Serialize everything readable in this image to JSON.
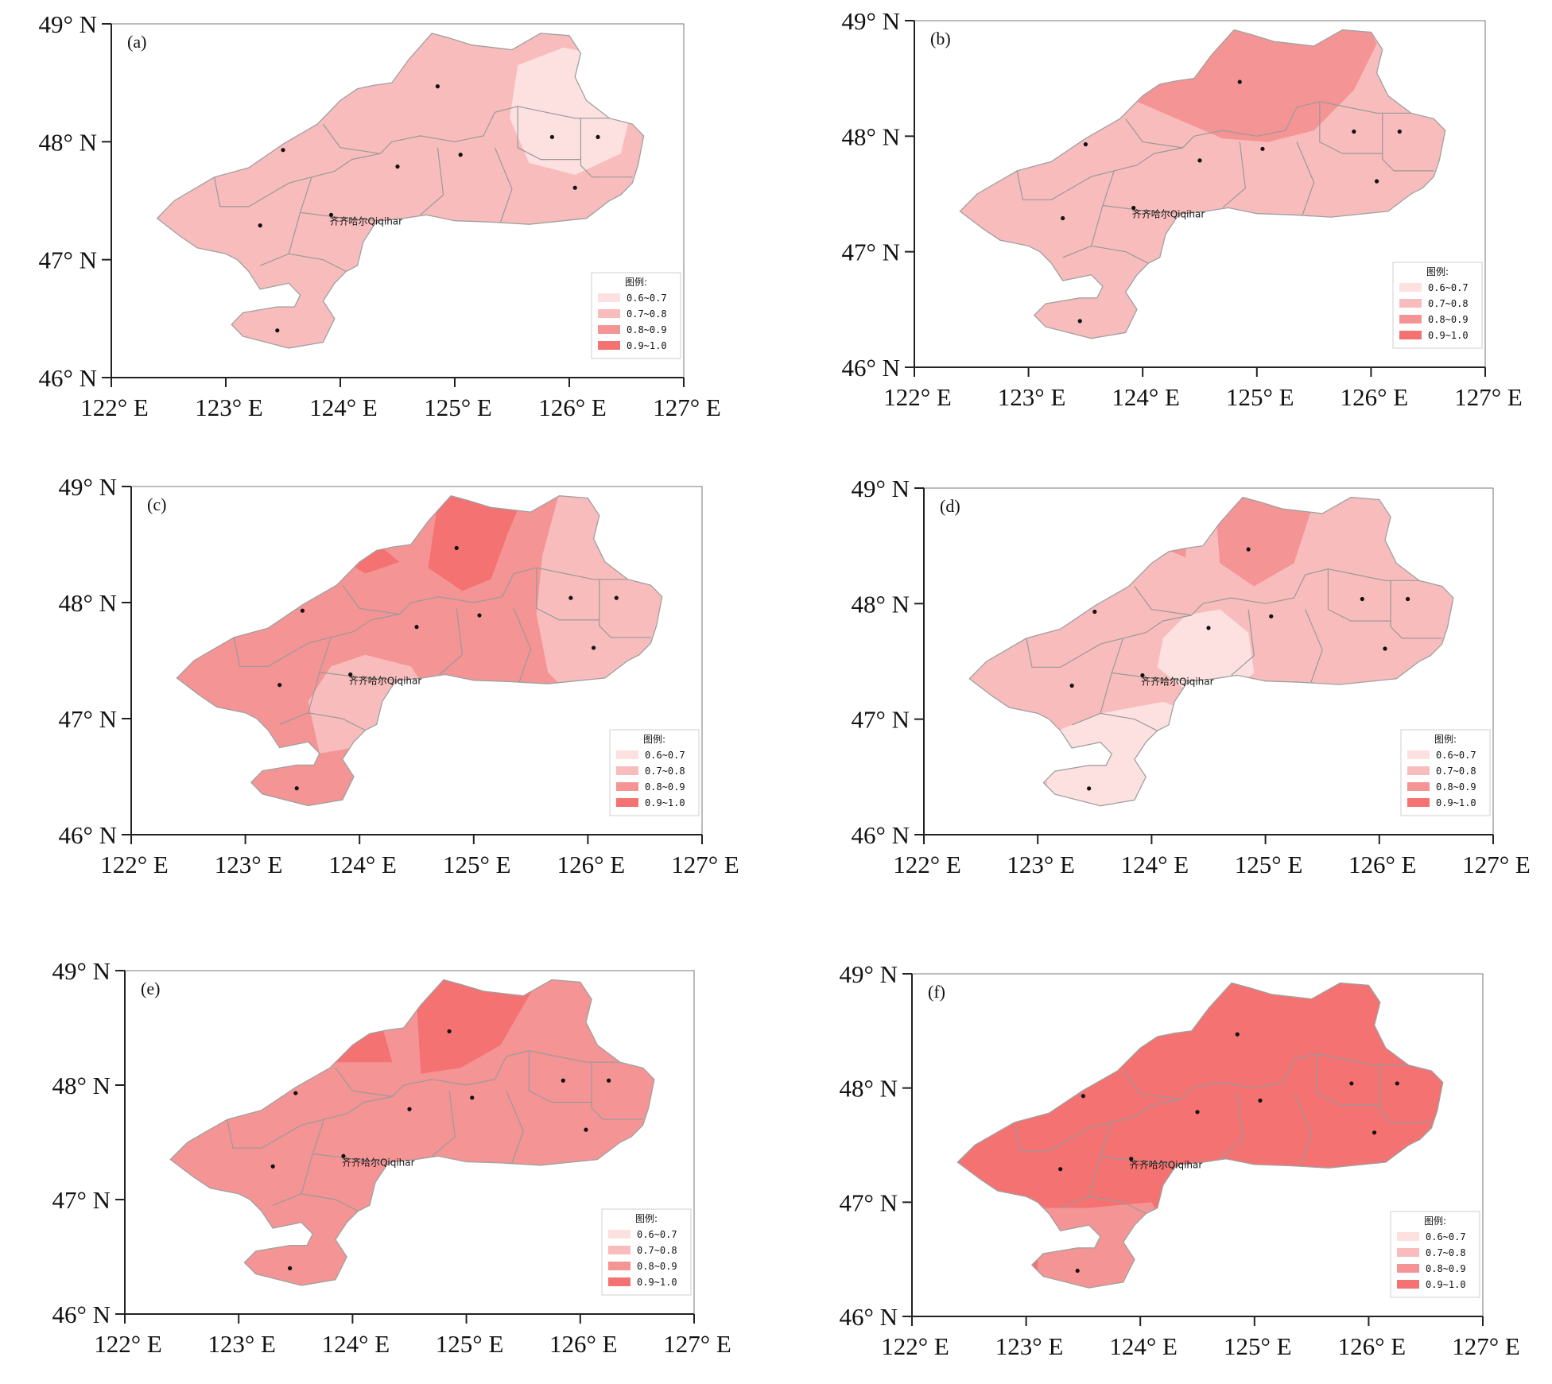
{
  "colors": {
    "0.6~0.7": "#fde0e0",
    "0.7~0.8": "#f8bcbc",
    "0.8~0.9": "#f59494",
    "0.9~1.0": "#f57272",
    "boundary": "#9a9a9a",
    "axis": "#222222"
  },
  "axes": {
    "lat_ticks": [
      "46° N",
      "47° N",
      "48° N",
      "49° N"
    ],
    "lon_ticks": [
      "122° E",
      "123° E",
      "124° E",
      "125° E",
      "126° E",
      "127° E"
    ],
    "lat_range": [
      46,
      49
    ],
    "lon_range": [
      122,
      127
    ]
  },
  "city_label": "齐齐哈尔Qiqihar",
  "legend": {
    "title": "图例:",
    "classes": [
      "0.6~0.7",
      "0.7~0.8",
      "0.8~0.9",
      "0.9~1.0"
    ]
  },
  "panels": [
    {
      "label": "(a)",
      "base_class": "0.7~0.8",
      "zones": [
        {
          "class": "0.6~0.7",
          "lon_lat": [
            [
              125.55,
              48.65
            ],
            [
              125.95,
              48.8
            ],
            [
              126.35,
              48.72
            ],
            [
              126.55,
              48.3
            ],
            [
              126.45,
              47.9
            ],
            [
              126.05,
              47.72
            ],
            [
              125.65,
              47.82
            ],
            [
              125.48,
              48.2
            ]
          ]
        }
      ]
    },
    {
      "label": "(b)",
      "base_class": "0.7~0.8",
      "zones": [
        {
          "class": "0.8~0.9",
          "lon_lat": [
            [
              123.95,
              48.3
            ],
            [
              124.3,
              48.15
            ],
            [
              124.7,
              47.98
            ],
            [
              125.1,
              47.95
            ],
            [
              125.5,
              48.05
            ],
            [
              125.85,
              48.4
            ],
            [
              126.05,
              48.8
            ],
            [
              125.95,
              49.0
            ],
            [
              124.55,
              49.0
            ],
            [
              124.15,
              48.5
            ]
          ]
        }
      ]
    },
    {
      "label": "(c)",
      "base_class": "0.8~0.9",
      "zones": [
        {
          "class": "0.7~0.8",
          "lon_lat": [
            [
              125.75,
              48.95
            ],
            [
              125.6,
              48.4
            ],
            [
              125.55,
              47.9
            ],
            [
              125.65,
              47.4
            ],
            [
              125.85,
              47.2
            ],
            [
              126.8,
              47.2
            ],
            [
              126.8,
              48.95
            ]
          ]
        },
        {
          "class": "0.9~1.0",
          "lon_lat": [
            [
              124.7,
              48.95
            ],
            [
              124.6,
              48.3
            ],
            [
              124.9,
              48.1
            ],
            [
              125.15,
              48.2
            ],
            [
              125.3,
              48.6
            ],
            [
              125.45,
              48.95
            ]
          ]
        },
        {
          "class": "0.9~1.0",
          "lon_lat": [
            [
              123.8,
              48.4
            ],
            [
              124.1,
              48.55
            ],
            [
              124.35,
              48.35
            ],
            [
              124.05,
              48.25
            ]
          ]
        },
        {
          "class": "0.7~0.8",
          "lon_lat": [
            [
              123.55,
              47.15
            ],
            [
              123.75,
              47.45
            ],
            [
              124.05,
              47.55
            ],
            [
              124.45,
              47.45
            ],
            [
              124.55,
              47.3
            ],
            [
              124.25,
              47.05
            ],
            [
              123.95,
              46.75
            ],
            [
              123.65,
              46.7
            ]
          ]
        }
      ]
    },
    {
      "label": "(d)",
      "base_class": "0.7~0.8",
      "zones": [
        {
          "class": "0.8~0.9",
          "lon_lat": [
            [
              124.55,
              48.95
            ],
            [
              124.6,
              48.35
            ],
            [
              124.9,
              48.15
            ],
            [
              125.25,
              48.35
            ],
            [
              125.45,
              48.95
            ]
          ]
        },
        {
          "class": "0.8~0.9",
          "lon_lat": [
            [
              124.05,
              48.5
            ],
            [
              124.3,
              48.55
            ],
            [
              124.3,
              48.4
            ]
          ]
        },
        {
          "class": "0.6~0.7",
          "lon_lat": [
            [
              124.3,
              47.9
            ],
            [
              124.6,
              47.95
            ],
            [
              124.85,
              47.75
            ],
            [
              124.9,
              47.4
            ],
            [
              124.7,
              47.25
            ],
            [
              124.3,
              47.25
            ],
            [
              124.05,
              47.45
            ],
            [
              124.1,
              47.7
            ]
          ]
        },
        {
          "class": "0.6~0.7",
          "lon_lat": [
            [
              123.05,
              46.85
            ],
            [
              123.55,
              47.05
            ],
            [
              124.1,
              47.15
            ],
            [
              124.4,
              47.05
            ],
            [
              124.2,
              46.7
            ],
            [
              123.9,
              46.2
            ],
            [
              123.1,
              46.2
            ]
          ]
        }
      ]
    },
    {
      "label": "(e)",
      "base_class": "0.8~0.9",
      "zones": [
        {
          "class": "0.9~1.0",
          "lon_lat": [
            [
              124.55,
              48.95
            ],
            [
              124.6,
              48.1
            ],
            [
              124.95,
              48.15
            ],
            [
              125.3,
              48.35
            ],
            [
              125.65,
              48.95
            ]
          ]
        },
        {
          "class": "0.9~1.0",
          "lon_lat": [
            [
              123.65,
              48.2
            ],
            [
              123.95,
              48.45
            ],
            [
              124.25,
              48.55
            ],
            [
              124.35,
              48.2
            ]
          ]
        }
      ]
    },
    {
      "label": "(f)",
      "base_class": "0.9~1.0",
      "zones": [
        {
          "class": "0.8~0.9",
          "lon_lat": [
            [
              123.1,
              46.95
            ],
            [
              123.55,
              46.95
            ],
            [
              124.1,
              47.0
            ],
            [
              124.3,
              46.6
            ],
            [
              123.9,
              46.2
            ],
            [
              123.1,
              46.2
            ]
          ]
        }
      ]
    }
  ],
  "region": {
    "outline": [
      [
        122.4,
        47.35
      ],
      [
        122.55,
        47.5
      ],
      [
        122.9,
        47.7
      ],
      [
        123.2,
        47.78
      ],
      [
        123.5,
        47.98
      ],
      [
        123.8,
        48.15
      ],
      [
        124.0,
        48.35
      ],
      [
        124.15,
        48.45
      ],
      [
        124.3,
        48.48
      ],
      [
        124.45,
        48.5
      ],
      [
        124.6,
        48.7
      ],
      [
        124.8,
        48.92
      ],
      [
        124.95,
        48.88
      ],
      [
        125.15,
        48.82
      ],
      [
        125.5,
        48.78
      ],
      [
        125.75,
        48.92
      ],
      [
        126.0,
        48.9
      ],
      [
        126.1,
        48.75
      ],
      [
        126.05,
        48.55
      ],
      [
        126.15,
        48.35
      ],
      [
        126.35,
        48.2
      ],
      [
        126.55,
        48.15
      ],
      [
        126.65,
        48.05
      ],
      [
        126.6,
        47.8
      ],
      [
        126.55,
        47.65
      ],
      [
        126.45,
        47.55
      ],
      [
        126.35,
        47.5
      ],
      [
        126.15,
        47.35
      ],
      [
        125.65,
        47.3
      ],
      [
        125.3,
        47.32
      ],
      [
        125.0,
        47.33
      ],
      [
        124.75,
        47.38
      ],
      [
        124.55,
        47.35
      ],
      [
        124.35,
        47.33
      ],
      [
        124.3,
        47.3
      ],
      [
        124.2,
        47.15
      ],
      [
        124.15,
        46.95
      ],
      [
        124.05,
        46.9
      ],
      [
        123.95,
        46.8
      ],
      [
        123.85,
        46.65
      ],
      [
        123.95,
        46.5
      ],
      [
        123.85,
        46.3
      ],
      [
        123.55,
        46.25
      ],
      [
        123.35,
        46.3
      ],
      [
        123.15,
        46.35
      ],
      [
        123.05,
        46.45
      ],
      [
        123.15,
        46.55
      ],
      [
        123.45,
        46.6
      ],
      [
        123.6,
        46.6
      ],
      [
        123.65,
        46.7
      ],
      [
        123.55,
        46.8
      ],
      [
        123.3,
        46.75
      ],
      [
        123.2,
        46.9
      ],
      [
        123.1,
        47.0
      ],
      [
        123.0,
        47.05
      ],
      [
        122.75,
        47.1
      ],
      [
        122.6,
        47.2
      ]
    ],
    "borders": [
      [
        [
          122.9,
          47.7
        ],
        [
          122.95,
          47.45
        ],
        [
          123.2,
          47.45
        ],
        [
          123.55,
          47.65
        ],
        [
          123.75,
          47.7
        ]
      ],
      [
        [
          123.75,
          47.7
        ],
        [
          123.95,
          47.75
        ],
        [
          124.1,
          47.85
        ],
        [
          124.35,
          47.9
        ],
        [
          124.45,
          48.0
        ]
      ],
      [
        [
          124.45,
          48.0
        ],
        [
          124.7,
          48.05
        ],
        [
          125.0,
          48.0
        ],
        [
          125.25,
          48.05
        ],
        [
          125.35,
          48.25
        ],
        [
          125.55,
          48.3
        ]
      ],
      [
        [
          125.55,
          48.3
        ],
        [
          125.8,
          48.25
        ],
        [
          126.05,
          48.2
        ],
        [
          126.35,
          48.2
        ]
      ],
      [
        [
          126.1,
          48.2
        ],
        [
          126.1,
          47.8
        ],
        [
          126.2,
          47.7
        ],
        [
          126.55,
          47.7
        ]
      ],
      [
        [
          125.55,
          48.3
        ],
        [
          125.55,
          47.95
        ],
        [
          125.75,
          47.85
        ],
        [
          126.1,
          47.85
        ]
      ],
      [
        [
          125.35,
          47.95
        ],
        [
          125.5,
          47.6
        ],
        [
          125.4,
          47.32
        ]
      ],
      [
        [
          124.85,
          47.95
        ],
        [
          124.9,
          47.55
        ],
        [
          124.7,
          47.38
        ]
      ],
      [
        [
          123.75,
          47.7
        ],
        [
          123.65,
          47.4
        ],
        [
          123.55,
          47.05
        ],
        [
          123.3,
          46.95
        ]
      ],
      [
        [
          123.65,
          47.4
        ],
        [
          124.05,
          47.35
        ],
        [
          124.35,
          47.33
        ]
      ],
      [
        [
          123.55,
          47.05
        ],
        [
          123.85,
          47.0
        ],
        [
          124.05,
          46.9
        ]
      ],
      [
        [
          123.85,
          48.15
        ],
        [
          124.0,
          47.95
        ],
        [
          124.35,
          47.9
        ]
      ]
    ],
    "stations": [
      [
        123.5,
        47.93
      ],
      [
        124.85,
        48.47
      ],
      [
        124.5,
        47.79
      ],
      [
        125.05,
        47.89
      ],
      [
        125.85,
        48.04
      ],
      [
        126.25,
        48.04
      ],
      [
        126.05,
        47.61
      ],
      [
        123.3,
        47.29
      ],
      [
        123.92,
        47.38
      ],
      [
        123.45,
        46.4
      ]
    ],
    "city": [
      123.92,
      47.38
    ]
  }
}
